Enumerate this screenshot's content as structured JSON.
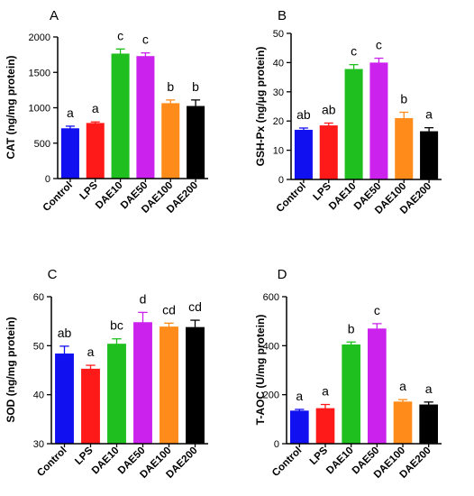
{
  "chart_data": [
    {
      "type": "bar",
      "panel_label": "A",
      "ylabel": "CAT (ng/mg protein)",
      "categories": [
        "Control",
        "LPS",
        "DAE10",
        "DAE50",
        "DAE100",
        "DAE200"
      ],
      "values": [
        710,
        785,
        1765,
        1730,
        1065,
        1025
      ],
      "errors": [
        30,
        15,
        65,
        45,
        45,
        85
      ],
      "significance": [
        "a",
        "a",
        "c",
        "c",
        "b",
        "b"
      ],
      "ylim": [
        0,
        2000
      ],
      "yticks": [
        0,
        500,
        1000,
        1500,
        2000
      ],
      "colors": [
        "#1010f0",
        "#ff1a1a",
        "#1fbf1f",
        "#cc22ee",
        "#ff8c1a",
        "#000000"
      ]
    },
    {
      "type": "bar",
      "panel_label": "B",
      "ylabel": "GSH-Px (ng/μg protein)",
      "categories": [
        "Control",
        "LPS",
        "DAE10",
        "DAE50",
        "DAE100",
        "DAE200"
      ],
      "values": [
        17,
        18.5,
        37.8,
        40,
        21,
        16.5
      ],
      "errors": [
        0.6,
        0.8,
        1.5,
        1.5,
        2.0,
        1.2
      ],
      "significance": [
        "ab",
        "ab",
        "c",
        "c",
        "b",
        "a"
      ],
      "ylim": [
        0,
        50
      ],
      "yticks": [
        0,
        10,
        20,
        30,
        40,
        50
      ],
      "colors": [
        "#1010f0",
        "#ff1a1a",
        "#1fbf1f",
        "#cc22ee",
        "#ff8c1a",
        "#000000"
      ]
    },
    {
      "type": "bar",
      "panel_label": "C",
      "ylabel": "SOD (ng/mg protein)",
      "categories": [
        "Control",
        "LPS",
        "DAE10",
        "DAE50",
        "DAE100",
        "DAE200"
      ],
      "values": [
        48.4,
        45.3,
        50.4,
        54.8,
        53.9,
        53.8
      ],
      "errors": [
        1.5,
        0.7,
        1.0,
        2.0,
        0.7,
        1.4
      ],
      "significance": [
        "ab",
        "a",
        "bc",
        "d",
        "cd",
        "cd"
      ],
      "ylim": [
        30,
        60
      ],
      "yticks": [
        30,
        40,
        50,
        60
      ],
      "colors": [
        "#1010f0",
        "#ff1a1a",
        "#1fbf1f",
        "#cc22ee",
        "#ff8c1a",
        "#000000"
      ]
    },
    {
      "type": "bar",
      "panel_label": "D",
      "ylabel": "T-AOC (U/mg protein)",
      "categories": [
        "Control",
        "LPS",
        "DAE10",
        "DAE50",
        "DAE100",
        "DAE200"
      ],
      "values": [
        135,
        145,
        405,
        470,
        172,
        160
      ],
      "errors": [
        5,
        15,
        10,
        20,
        8,
        10
      ],
      "significance": [
        "a",
        "a",
        "b",
        "c",
        "a",
        "a"
      ],
      "ylim": [
        0,
        600
      ],
      "yticks": [
        0,
        200,
        400,
        600
      ],
      "colors": [
        "#1010f0",
        "#ff1a1a",
        "#1fbf1f",
        "#cc22ee",
        "#ff8c1a",
        "#000000"
      ]
    }
  ]
}
